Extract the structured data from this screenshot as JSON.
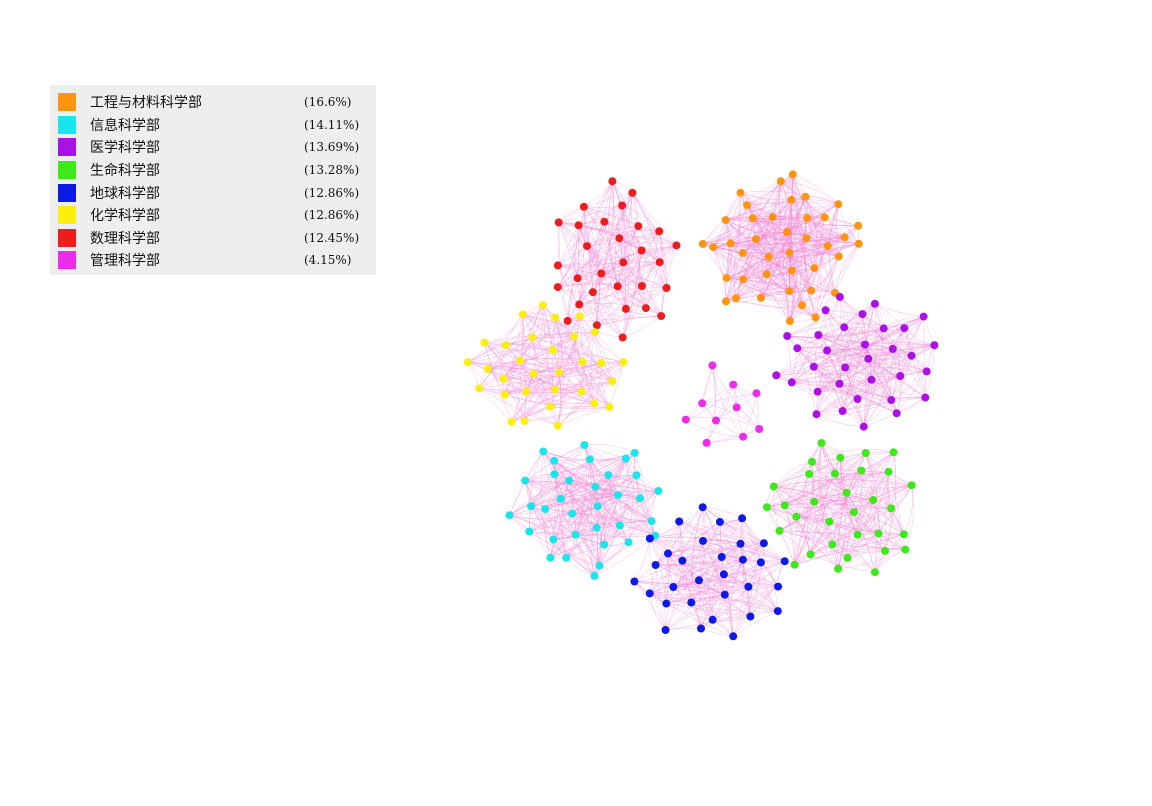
{
  "legend": {
    "items": [
      {
        "label": "工程与材料科学部",
        "percent": "(16.6%)",
        "color": "#ff9410"
      },
      {
        "label": "信息科学部",
        "percent": "(14.11%)",
        "color": "#18e6ea"
      },
      {
        "label": "医学科学部",
        "percent": "(13.69%)",
        "color": "#aa10e8"
      },
      {
        "label": "生命科学部",
        "percent": "(13.28%)",
        "color": "#3cea18"
      },
      {
        "label": "地球科学部",
        "percent": "(12.86%)",
        "color": "#0c1ae8"
      },
      {
        "label": "化学科学部",
        "percent": "(12.86%)",
        "color": "#fcef10"
      },
      {
        "label": "数理科学部",
        "percent": "(12.45%)",
        "color": "#ee1d1d"
      },
      {
        "label": "管理科学部",
        "percent": "(4.15%)",
        "color": "#ec2cea"
      }
    ]
  },
  "network": {
    "edge_color": "#f07ad0",
    "node_counts": {
      "工程与材料科学部": 40,
      "信息科学部": 34,
      "医学科学部": 33,
      "生命科学部": 32,
      "地球科学部": 31,
      "化学科学部": 31,
      "数理科学部": 30,
      "管理科学部": 10
    }
  }
}
